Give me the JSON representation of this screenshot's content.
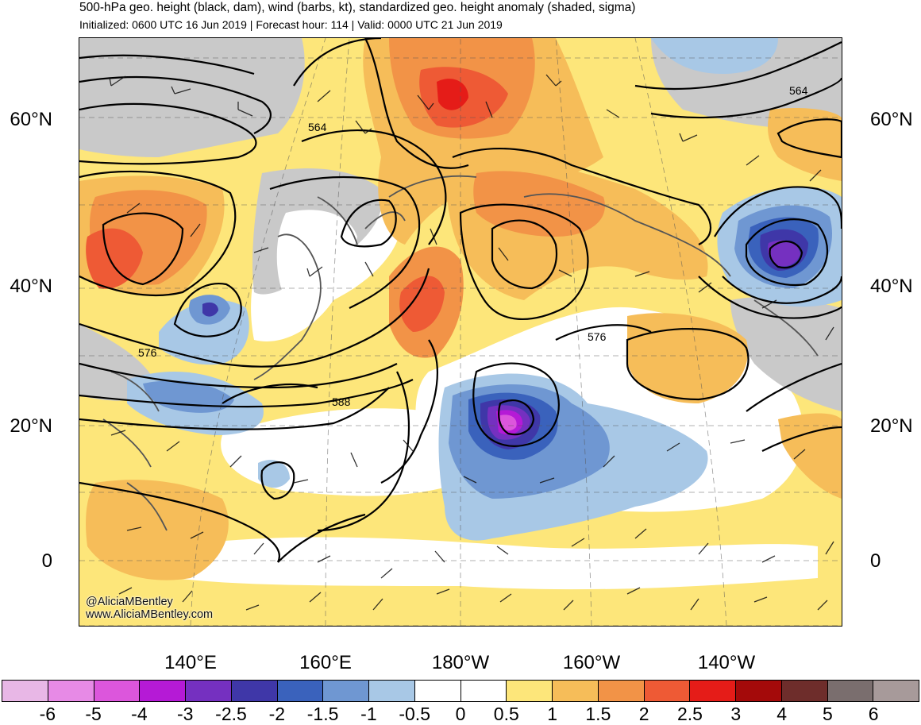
{
  "header": {
    "title": "500-hPa geo. height (black, dam), wind (barbs, kt), standardized geo. height anomaly (shaded, sigma)",
    "subtitle": "Initialized: 0600 UTC 16 Jun 2019 | Forecast hour: 114 | Valid: 0000 UTC 21 Jun 2019"
  },
  "map": {
    "lat_labels": [
      "60°N",
      "40°N",
      "20°N",
      "0"
    ],
    "lon_labels": [
      "140°E",
      "160°E",
      "180°W",
      "160°W",
      "140°W"
    ],
    "contour_labels": [
      "564",
      "564",
      "576",
      "576",
      "588"
    ],
    "credit": [
      "@AliciaMBentley",
      "www.AliciaMBentley.com"
    ]
  },
  "colorbar": {
    "labels": [
      "-6",
      "-5",
      "-4",
      "-3",
      "-2.5",
      "-2",
      "-1.5",
      "-1",
      "-0.5",
      "0",
      "0.5",
      "1",
      "1.5",
      "2",
      "2.5",
      "3",
      "4",
      "5",
      "6"
    ],
    "colors": [
      "#e8b7e6",
      "#e78ae6",
      "#dc56dc",
      "#b51ad6",
      "#7530c0",
      "#3f37a8",
      "#3a62bc",
      "#6f97d2",
      "#a8c8e6",
      "#ffffff",
      "#ffffff",
      "#fde67a",
      "#f6bd59",
      "#f29347",
      "#ee5a35",
      "#e51c18",
      "#a40a0a",
      "#6e2d2b",
      "#7a6e6e",
      "#a79a9a"
    ]
  }
}
